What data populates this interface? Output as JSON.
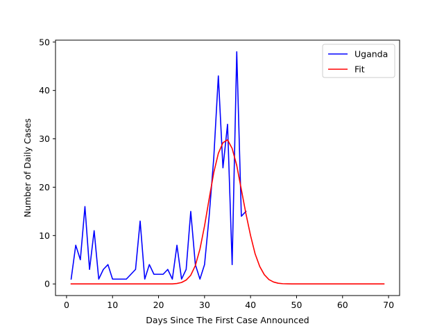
{
  "chart_data": {
    "type": "line",
    "title": "",
    "xlabel": "Days Since The First Case Announced",
    "ylabel": "Number of Daily Cases",
    "xlim": [
      -2.4,
      72.4
    ],
    "ylim": [
      -2.4,
      50.4
    ],
    "xticks": [
      0,
      10,
      20,
      30,
      40,
      50,
      60,
      70
    ],
    "yticks": [
      0,
      10,
      20,
      30,
      40,
      50
    ],
    "grid": false,
    "legend_position": "top-right",
    "series": [
      {
        "name": "Uganda",
        "color": "#0000ff",
        "x": [
          1,
          2,
          3,
          4,
          5,
          6,
          7,
          8,
          9,
          10,
          11,
          12,
          13,
          14,
          15,
          16,
          17,
          18,
          19,
          20,
          21,
          22,
          23,
          24,
          25,
          26,
          27,
          28,
          29,
          30,
          31,
          32,
          33,
          34,
          35,
          36,
          37,
          38,
          39
        ],
        "y": [
          1,
          8,
          5,
          16,
          3,
          11,
          1,
          3,
          4,
          1,
          1,
          1,
          1,
          2,
          3,
          13,
          1,
          4,
          2,
          2,
          2,
          3,
          1,
          8,
          1,
          3,
          15,
          4,
          1,
          4,
          14,
          26,
          43,
          24,
          33,
          4,
          48,
          14,
          15
        ]
      },
      {
        "name": "Fit",
        "color": "#ff0000",
        "x": [
          1,
          2,
          3,
          4,
          5,
          6,
          7,
          8,
          9,
          10,
          11,
          12,
          13,
          14,
          15,
          16,
          17,
          18,
          19,
          20,
          21,
          22,
          23,
          24,
          25,
          26,
          27,
          28,
          29,
          30,
          31,
          32,
          33,
          34,
          35,
          36,
          37,
          38,
          39,
          40,
          41,
          42,
          43,
          44,
          45,
          46,
          47,
          48,
          49,
          50,
          51,
          52,
          53,
          54,
          55,
          56,
          57,
          58,
          59,
          60,
          61,
          62,
          63,
          64,
          65,
          66,
          67,
          68,
          69
        ],
        "y": [
          0,
          0,
          0,
          0,
          0,
          0,
          0,
          0,
          0,
          0,
          0,
          0,
          0,
          0,
          0,
          0,
          0,
          0,
          0,
          0,
          0,
          0,
          0,
          0.1,
          0.3,
          0.8,
          1.8,
          3.8,
          7.2,
          12,
          17.6,
          23,
          27,
          29.2,
          29.8,
          28,
          24.5,
          19.5,
          14.5,
          10,
          6.2,
          3.6,
          1.9,
          0.9,
          0.4,
          0.15,
          0.05,
          0.02,
          0,
          0,
          0,
          0,
          0,
          0,
          0,
          0,
          0,
          0,
          0,
          0,
          0,
          0,
          0,
          0,
          0,
          0,
          0,
          0,
          0
        ]
      }
    ]
  }
}
